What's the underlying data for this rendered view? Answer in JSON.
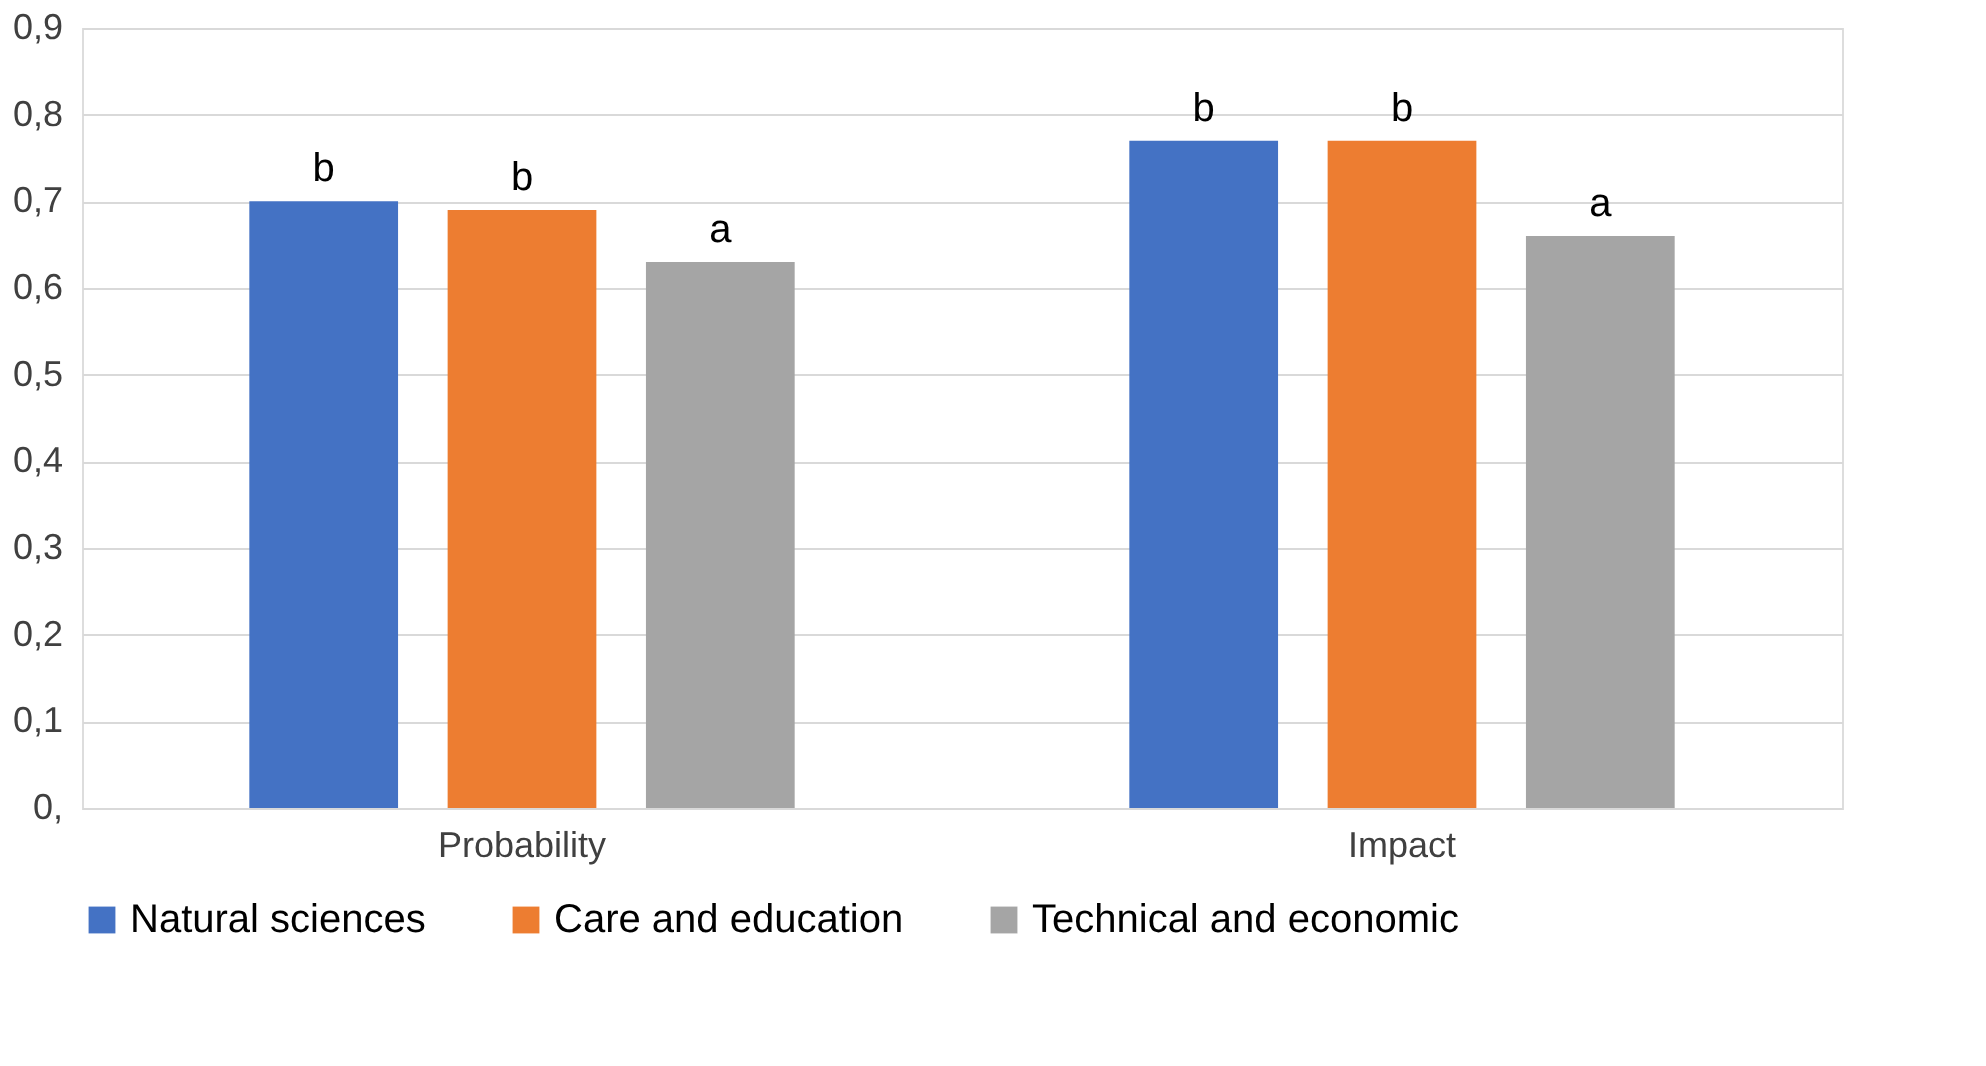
{
  "chart_data": {
    "type": "bar",
    "categories": [
      "Probability",
      "Impact"
    ],
    "series": [
      {
        "name": "Natural sciences",
        "color": "#4472c4",
        "values": [
          0.7,
          0.77
        ],
        "value_labels": [
          "b",
          "b"
        ]
      },
      {
        "name": "Care and education",
        "color": "#ed7d31",
        "values": [
          0.69,
          0.77
        ],
        "value_labels": [
          "b",
          "b"
        ]
      },
      {
        "name": "Technical and economic",
        "color": "#a5a5a5",
        "values": [
          0.63,
          0.66
        ],
        "value_labels": [
          "a",
          "a"
        ]
      }
    ],
    "ylim": [
      0,
      0.9
    ],
    "yticks": [
      {
        "value": 0,
        "label": "0,"
      },
      {
        "value": 0.1,
        "label": "0,1"
      },
      {
        "value": 0.2,
        "label": "0,2"
      },
      {
        "value": 0.3,
        "label": "0,3"
      },
      {
        "value": 0.4,
        "label": "0,4"
      },
      {
        "value": 0.5,
        "label": "0,5"
      },
      {
        "value": 0.6,
        "label": "0,6"
      },
      {
        "value": 0.7,
        "label": "0,7"
      },
      {
        "value": 0.8,
        "label": "0,8"
      },
      {
        "value": 0.9,
        "label": "0,9"
      }
    ],
    "grid": "y",
    "legend": "bottom"
  }
}
